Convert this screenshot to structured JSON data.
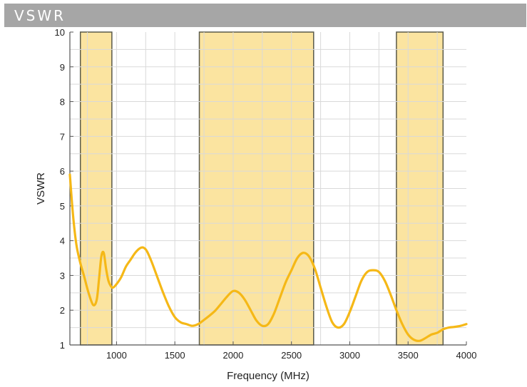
{
  "header": {
    "title": "VSWR"
  },
  "chart_data": {
    "type": "line",
    "title": "",
    "xlabel": "Frequency (MHz)",
    "ylabel": "VSWR",
    "xlim": [
      600,
      4000
    ],
    "ylim": [
      1,
      10
    ],
    "xticks": [
      1000,
      1500,
      2000,
      2500,
      3000,
      3500,
      4000
    ],
    "yticks": [
      1,
      2,
      3,
      4,
      5,
      6,
      7,
      8,
      9,
      10
    ],
    "grid": true,
    "colors": {
      "line": "#f5b817",
      "band_fill": "#fbe4a0",
      "band_edge": "#5a5a4a",
      "grid": "#d9d9d9"
    },
    "bands": [
      [
        690,
        960
      ],
      [
        1710,
        2690
      ],
      [
        3400,
        3800
      ]
    ],
    "series": [
      {
        "x": [
          600,
          620,
          640,
          660,
          690,
          720,
          760,
          800,
          830,
          850,
          870,
          890,
          910,
          930,
          950,
          970,
          1000,
          1040,
          1080,
          1120,
          1160,
          1200,
          1230,
          1260,
          1300,
          1350,
          1400,
          1450,
          1500,
          1550,
          1600,
          1650,
          1700,
          1750,
          1800,
          1850,
          1900,
          1950,
          2000,
          2050,
          2100,
          2150,
          2200,
          2250,
          2300,
          2350,
          2400,
          2450,
          2500,
          2550,
          2600,
          2650,
          2700,
          2750,
          2800,
          2850,
          2900,
          2950,
          3000,
          3050,
          3100,
          3150,
          3200,
          3250,
          3300,
          3350,
          3400,
          3450,
          3500,
          3550,
          3600,
          3650,
          3700,
          3750,
          3800,
          3850,
          3900,
          3950,
          4000
        ],
        "y": [
          5.9,
          5.0,
          4.3,
          3.8,
          3.35,
          3.0,
          2.5,
          2.15,
          2.3,
          2.9,
          3.55,
          3.65,
          3.2,
          2.85,
          2.7,
          2.65,
          2.75,
          2.95,
          3.25,
          3.45,
          3.65,
          3.78,
          3.8,
          3.7,
          3.4,
          2.95,
          2.5,
          2.1,
          1.8,
          1.65,
          1.6,
          1.55,
          1.6,
          1.72,
          1.85,
          2.0,
          2.2,
          2.4,
          2.55,
          2.5,
          2.3,
          2.0,
          1.7,
          1.55,
          1.6,
          1.9,
          2.35,
          2.8,
          3.15,
          3.5,
          3.65,
          3.55,
          3.2,
          2.65,
          2.1,
          1.65,
          1.5,
          1.6,
          1.95,
          2.4,
          2.85,
          3.1,
          3.15,
          3.1,
          2.85,
          2.45,
          2.0,
          1.6,
          1.3,
          1.15,
          1.12,
          1.2,
          1.3,
          1.35,
          1.45,
          1.5,
          1.52,
          1.55,
          1.6
        ]
      }
    ]
  }
}
